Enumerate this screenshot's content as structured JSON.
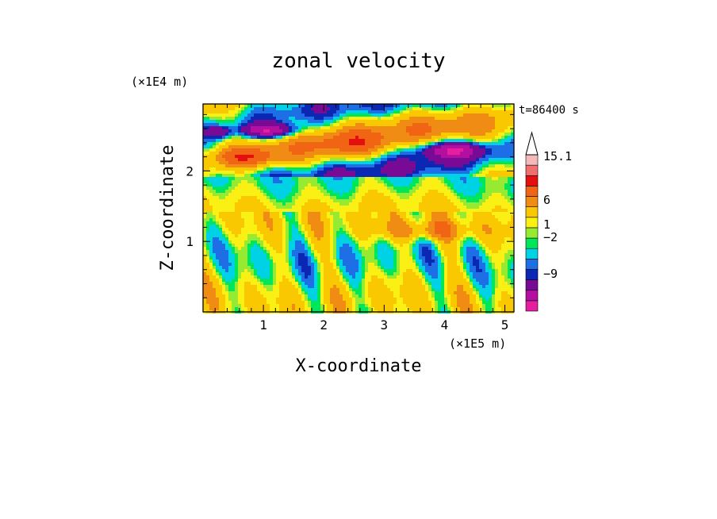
{
  "chart_data": {
    "type": "heatmap",
    "title": "zonal velocity",
    "xlabel": "X-coordinate",
    "ylabel": "Z-coordinate",
    "x_units": "(×1E5 m)",
    "y_units": "(×1E4 m)",
    "time_label": "t=86400 s",
    "xlim": [
      0,
      5.15
    ],
    "ylim": [
      0,
      2.95
    ],
    "x_ticks": [
      "1",
      "2",
      "3",
      "4",
      "5"
    ],
    "y_ticks": [
      "1",
      "2"
    ],
    "colorbar": {
      "label_values": [
        "15.1",
        "6",
        "1",
        "−2",
        "−9"
      ],
      "levels": [
        {
          "v": -12,
          "color": "#e61ea0"
        },
        {
          "v": -9,
          "color": "#b40fa0"
        },
        {
          "v": -6,
          "color": "#780a96"
        },
        {
          "v": -3,
          "color": "#0a28b4"
        },
        {
          "v": -2,
          "color": "#1e6ee6"
        },
        {
          "v": -1,
          "color": "#00d2e6"
        },
        {
          "v": 0,
          "color": "#00e65a"
        },
        {
          "v": 0.5,
          "color": "#96eb32"
        },
        {
          "v": 1,
          "color": "#faf014"
        },
        {
          "v": 2,
          "color": "#fac800"
        },
        {
          "v": 4,
          "color": "#f08c14"
        },
        {
          "v": 6,
          "color": "#f06414"
        },
        {
          "v": 9,
          "color": "#e60f0f"
        },
        {
          "v": 12,
          "color": "#f06e6e"
        },
        {
          "v": 15,
          "color": "#f5b9b9"
        }
      ],
      "extend": "max"
    }
  }
}
